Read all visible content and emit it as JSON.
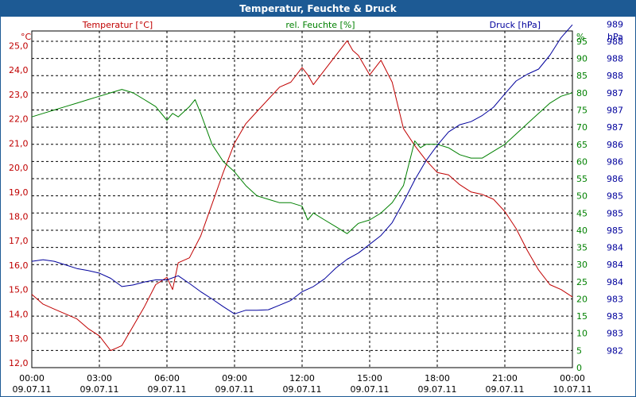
{
  "window": {
    "title": "Temperatur, Feuchte & Druck"
  },
  "colors": {
    "temperature": "#c00000",
    "humidity": "#008000",
    "pressure": "#00009c",
    "title_bar": "#1d5a94",
    "grid": "#000000"
  },
  "chart_data": {
    "type": "line",
    "title": "Temperatur, Feuchte & Druck",
    "grid": true,
    "x_ticks": [
      {
        "time": "00:00",
        "date": "09.07.11"
      },
      {
        "time": "03:00",
        "date": "09.07.11"
      },
      {
        "time": "06:00",
        "date": "09.07.11"
      },
      {
        "time": "09:00",
        "date": "09.07.11"
      },
      {
        "time": "12:00",
        "date": "09.07.11"
      },
      {
        "time": "15:00",
        "date": "09.07.11"
      },
      {
        "time": "18:00",
        "date": "09.07.11"
      },
      {
        "time": "21:00",
        "date": "09.07.11"
      },
      {
        "time": "00:00",
        "date": "10.07.11"
      }
    ],
    "axes": {
      "temperature": {
        "unit": "°C",
        "legend": "Temperatur [°C]",
        "range": [
          11.8,
          25.6
        ],
        "ticks": [
          "12,0",
          "13,0",
          "14,0",
          "15,0",
          "16,0",
          "17,0",
          "18,0",
          "19,0",
          "20,0",
          "21,0",
          "22,0",
          "23,0",
          "24,0",
          "25,0"
        ]
      },
      "humidity": {
        "unit": "%",
        "legend": "rel. Feuchte [%]",
        "range": [
          0,
          98
        ],
        "ticks": [
          "0",
          "5",
          "10",
          "15",
          "20",
          "25",
          "30",
          "35",
          "40",
          "45",
          "50",
          "55",
          "60",
          "65",
          "70",
          "75",
          "80",
          "85",
          "90",
          "95"
        ]
      },
      "pressure": {
        "unit": "hPa",
        "legend": "Druck [hPa]",
        "ticks": [
          "982",
          "983",
          "983",
          "983",
          "984",
          "984",
          "984",
          "985",
          "985",
          "985",
          "986",
          "986",
          "986",
          "987",
          "987",
          "987",
          "988",
          "988",
          "988",
          "989"
        ]
      }
    },
    "series": [
      {
        "name": "Temperatur [°C]",
        "axis": "temperature",
        "x_hours": [
          0,
          0.5,
          1,
          1.5,
          2,
          2.5,
          3,
          3.25,
          3.5,
          3.75,
          4,
          4.5,
          5,
          5.5,
          6,
          6.25,
          6.5,
          7,
          7.5,
          8,
          8.5,
          9,
          9.5,
          10,
          10.5,
          11,
          11.5,
          12,
          12.25,
          12.5,
          13,
          13.5,
          14,
          14.25,
          14.5,
          15,
          15.5,
          16,
          16.5,
          17,
          17.5,
          18,
          18.5,
          19,
          19.5,
          20,
          20.5,
          21,
          21.5,
          22,
          22.5,
          23,
          23.5,
          24
        ],
        "values": [
          14.8,
          14.4,
          14.2,
          14.0,
          13.8,
          13.4,
          13.1,
          12.8,
          12.5,
          12.6,
          12.7,
          13.5,
          14.3,
          15.2,
          15.5,
          15.0,
          16.1,
          16.3,
          17.2,
          18.5,
          19.8,
          21.0,
          21.8,
          22.3,
          22.8,
          23.3,
          23.5,
          24.1,
          23.8,
          23.4,
          24.0,
          24.6,
          25.2,
          24.8,
          24.6,
          23.8,
          24.4,
          23.5,
          21.6,
          20.9,
          20.3,
          19.8,
          19.7,
          19.3,
          19.0,
          18.9,
          18.7,
          18.2,
          17.5,
          16.6,
          15.8,
          15.2,
          15.0,
          14.7
        ]
      },
      {
        "name": "rel. Feuchte [%]",
        "axis": "humidity",
        "x_hours": [
          0,
          0.5,
          1,
          1.5,
          2,
          2.5,
          3,
          3.5,
          4,
          4.5,
          5,
          5.5,
          6,
          6.25,
          6.5,
          7,
          7.25,
          7.5,
          8,
          8.5,
          9,
          9.5,
          10,
          10.5,
          11,
          11.5,
          12,
          12.25,
          12.5,
          13,
          13.5,
          14,
          14.5,
          15,
          15.5,
          16,
          16.5,
          17,
          17.25,
          17.5,
          18,
          18.5,
          19,
          19.5,
          20,
          20.5,
          21,
          21.5,
          22,
          22.5,
          23,
          23.5,
          24
        ],
        "values": [
          73,
          74,
          75,
          76,
          77,
          78,
          79,
          80,
          81,
          80,
          78,
          76,
          72,
          74,
          73,
          76,
          78,
          74,
          65,
          60,
          57,
          53,
          50,
          49,
          48,
          48,
          47,
          43,
          45,
          43,
          41,
          39,
          42,
          43,
          45,
          48,
          53,
          66,
          64,
          65,
          65,
          64,
          62,
          61,
          61,
          63,
          65,
          68,
          71,
          74,
          77,
          79,
          80
        ]
      },
      {
        "name": "Druck [hPa]",
        "axis": "pressure",
        "x_hours": [
          0,
          0.5,
          1,
          1.5,
          2,
          2.5,
          3,
          3.5,
          4,
          4.5,
          5,
          5.5,
          6,
          6.5,
          7,
          7.5,
          8,
          8.5,
          9,
          9.5,
          10,
          10.5,
          11,
          11.5,
          12,
          12.5,
          13,
          13.5,
          14,
          14.5,
          15,
          15.5,
          16,
          16.5,
          17,
          17.5,
          18,
          18.5,
          19,
          19.5,
          20,
          20.5,
          21,
          21.5,
          22,
          22.5,
          23,
          23.5,
          24
        ],
        "values": [
          983.73,
          983.76,
          983.73,
          983.66,
          983.59,
          983.55,
          983.5,
          983.4,
          983.24,
          983.27,
          983.33,
          983.37,
          983.37,
          983.45,
          983.3,
          983.14,
          983.0,
          982.85,
          982.71,
          982.78,
          982.78,
          982.79,
          982.88,
          982.97,
          983.14,
          983.24,
          983.39,
          983.6,
          983.77,
          983.89,
          984.06,
          984.23,
          984.48,
          984.88,
          985.31,
          985.68,
          985.98,
          986.24,
          986.38,
          986.44,
          986.56,
          986.72,
          986.98,
          987.23,
          987.36,
          987.46,
          987.73,
          988.07,
          988.32
        ]
      }
    ]
  }
}
